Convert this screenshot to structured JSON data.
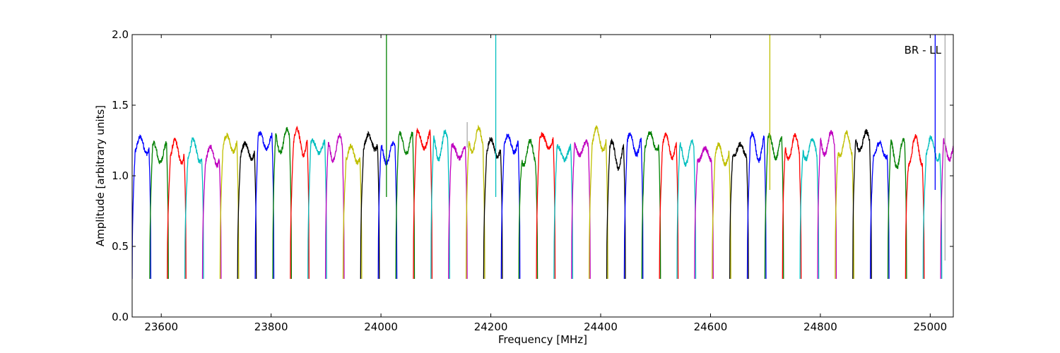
{
  "chart_data": {
    "type": "line",
    "title": "",
    "annotation": "BR - LL",
    "xlabel": "Frequency [MHz]",
    "ylabel": "Amplitude [arbitrary units]",
    "xlim": [
      23547,
      25042
    ],
    "ylim": [
      0.0,
      2.0
    ],
    "xticks": [
      23600,
      23800,
      24000,
      24200,
      24400,
      24600,
      24800,
      25000
    ],
    "xtick_labels": [
      "23600",
      "23800",
      "24000",
      "24200",
      "24400",
      "24600",
      "24800",
      "25000"
    ],
    "yticks": [
      0.0,
      0.5,
      1.0,
      1.5,
      2.0
    ],
    "ytick_labels": [
      "0.0",
      "0.5",
      "1.0",
      "1.5",
      "2.0"
    ],
    "grid": false,
    "series_colors": [
      "#0000ff",
      "#008000",
      "#ff0000",
      "#00bfbf",
      "#bf00bf",
      "#bfbf00",
      "#000000"
    ],
    "channel_width_mhz": 34,
    "channel_floor": 0.27,
    "channel_plateau": 1.2,
    "channel_starts": [
      23547,
      23579,
      23611,
      23643,
      23675,
      23707,
      23739,
      23771,
      23803,
      23835,
      23867,
      23899,
      23931,
      23963,
      23995,
      24027,
      24059,
      24091,
      24123,
      24155,
      24187,
      24219,
      24251,
      24283,
      24315,
      24347,
      24379,
      24411,
      24443,
      24475,
      24507,
      24539,
      24571,
      24603,
      24635,
      24667,
      24699,
      24731,
      24763,
      24795,
      24827,
      24859,
      24891,
      24923,
      24955,
      24987,
      25019
    ],
    "spikes": [
      {
        "freq": 24010,
        "from": 0.85,
        "to": 2.0,
        "color": "#008000"
      },
      {
        "freq": 24209,
        "from": 0.85,
        "to": 2.0,
        "color": "#00bfbf"
      },
      {
        "freq": 24157,
        "from": 1.2,
        "to": 1.38,
        "color": "#aaaaaa"
      },
      {
        "freq": 24708,
        "from": 0.9,
        "to": 2.0,
        "color": "#bfbf00"
      },
      {
        "freq": 25009,
        "from": 0.9,
        "to": 2.0,
        "color": "#0000ff"
      },
      {
        "freq": 25027,
        "from": 0.4,
        "to": 2.0,
        "color": "#aaaaaa"
      }
    ]
  }
}
